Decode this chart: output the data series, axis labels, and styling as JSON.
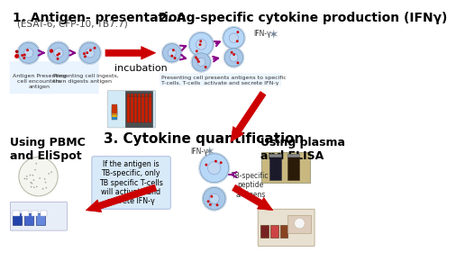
{
  "bg_color": "#ffffff",
  "title_fontsize": 10,
  "subtitle_fontsize": 7.5,
  "body_fontsize": 7,
  "small_fontsize": 5,
  "section1_title": "1. Antigen- presentation",
  "section1_subtitle": "(ESAT-6, CFP-10, TB7.7)",
  "section2_title": "2. Ag-specific cytokine production (IFNγ)",
  "section3_title": "3. Cytokine quantification",
  "label_incubation": "incubation",
  "label_pbmc": "Using PBMC\nand EliSpot",
  "label_plasma": "Using plasma\nand ELISA",
  "label_ifng1": "IFN-γ",
  "label_ifng2": "IFN-γ",
  "label_tb_peptide": "TB-specific\npeptide\nantigens",
  "box1_text": "If the antigen is\nTB-specific, only\nTB specific T-cells\nwill activate and\nsecrete IFN-γ",
  "caption1": "Antigen Presenting\ncell encounters\nantigen",
  "caption2": "Presenting cell ingests,\nthen digests antigen",
  "caption3": "Presenting cell presents antigens to specific\nT-cells. T-cells  activate and secrete IFN-γ",
  "arrow_color": "#cc0000",
  "arrow_small_color": "#6600aa",
  "cell_color_outer": "#aac8e8",
  "cell_color_inner": "#d0e8f8",
  "box_bg": "#e8f4fc",
  "box2_bg": "#ddeeff",
  "text_color": "#000000",
  "gray": "#888888"
}
